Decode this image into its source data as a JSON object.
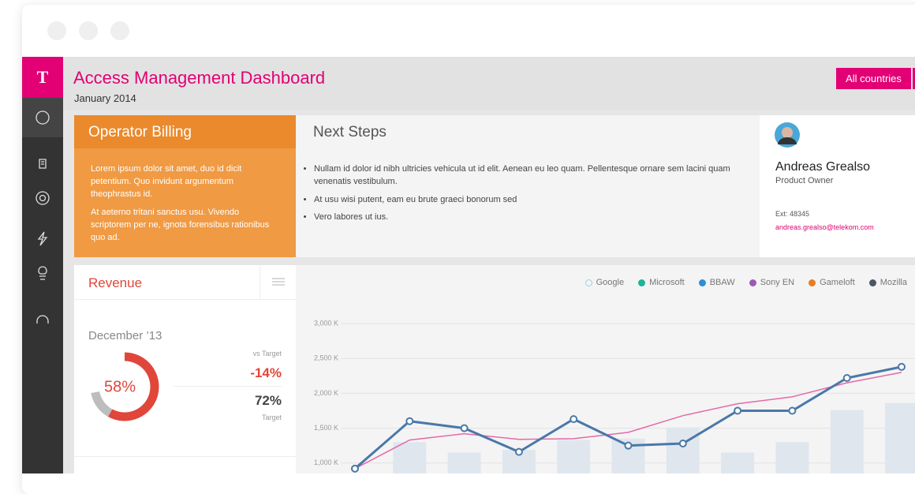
{
  "logo": "T",
  "header": {
    "title": "Access Management Dashboard",
    "subtitle": "January 2014",
    "button": "All countries"
  },
  "billing": {
    "title": "Operator Billing",
    "paragraphs": [
      "Lorem ipsum dolor sit amet, duo id dicit petentium. Quo invidunt argumentum theophrastus id.",
      "At aeterno tritani sanctus usu. Vivendo scriptorem per ne, ignota forensibus rationibus quo ad."
    ]
  },
  "next_steps": {
    "title": "Next Steps",
    "items": [
      "Nullam id dolor id nibh ultricies vehicula ut id elit. Aenean eu leo quam. Pellentesque ornare sem lacini quam venenatis vestibulum.",
      "At usu wisi putent, eam eu brute  graeci bonorum sed",
      "Vero labores ut ius."
    ]
  },
  "contact": {
    "name": "Andreas Grealso",
    "role": "Product Owner",
    "ext": "Ext: 48345",
    "email": "andreas.grealso@telekom.com"
  },
  "chart_data": [
    {
      "type": "donut",
      "title": "Revenue",
      "subtitle": "December ’13",
      "values": [
        58
      ],
      "value_labels": [
        "58%"
      ],
      "color": "#e0463a",
      "target": 72,
      "target_color": "#bdbdbd",
      "target_label": "72%",
      "target_caption": "Target",
      "delta_label": "-14%",
      "delta_caption": "vs Target"
    },
    {
      "type": "line",
      "legend": [
        {
          "name": "Google",
          "color": "#8fd3f0",
          "hollow": true
        },
        {
          "name": "Microsoft",
          "color": "#1bb59a"
        },
        {
          "name": "BBAW",
          "color": "#2e8ed8"
        },
        {
          "name": "Sony EN",
          "color": "#9b59b6"
        },
        {
          "name": "Gameloft",
          "color": "#e67e22"
        },
        {
          "name": "Mozilla",
          "color": "#4a5866"
        }
      ],
      "categories": [
        null,
        null,
        null,
        null,
        null,
        null,
        null,
        null,
        null,
        null,
        null
      ],
      "series": [
        {
          "type": "bar",
          "color": "#dfe6ee",
          "values": [
            null,
            1300,
            1150,
            1190,
            1330,
            1350,
            1510,
            1150,
            1300,
            1760,
            1860
          ]
        },
        {
          "type": "line",
          "color": "#e36aa8",
          "values": [
            920,
            1330,
            1420,
            1340,
            1350,
            1440,
            1680,
            1850,
            1950,
            2150,
            2300
          ]
        },
        {
          "type": "line",
          "color": "#4a78a8",
          "markers": true,
          "values": [
            920,
            1600,
            1500,
            1160,
            1630,
            1250,
            1280,
            1750,
            1750,
            2220,
            2380
          ]
        }
      ],
      "ylim": [
        850,
        3250
      ],
      "yticks": [
        {
          "value": 1000,
          "label": "1,000 K"
        },
        {
          "value": 1500,
          "label": "1,500 K"
        },
        {
          "value": 2000,
          "label": "2,000 K"
        },
        {
          "value": 2500,
          "label": "2,500 K"
        },
        {
          "value": 3000,
          "label": "3,000 K"
        }
      ],
      "grid": true
    }
  ]
}
